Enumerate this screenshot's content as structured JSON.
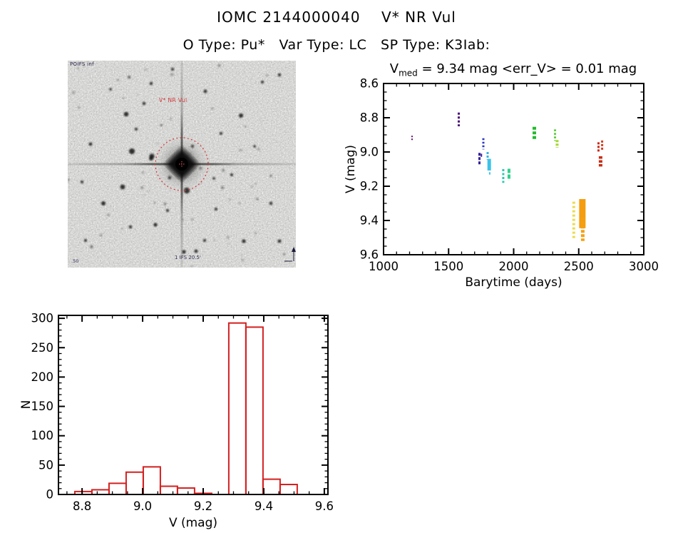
{
  "header": {
    "title": "IOMC 2144000040    V* NR Vul",
    "subtitle": "O Type: Pu*   Var Type: LC   SP Type: K3Iab:"
  },
  "finder_chart": {
    "survey_label": "POIFS inf",
    "target_label": "V* NR Vul",
    "scale_label": "1 IFS 20.5'",
    "corner_label": ".50",
    "circle_color": "#d83434"
  },
  "chart_data": [
    {
      "id": "lightcurve",
      "type": "scatter",
      "title": {
        "var": "V",
        "sub": "med",
        "rest": " = 9.34 mag <err_V> = 0.01 mag"
      },
      "xlabel": "Barytime (days)",
      "ylabel": "V (mag)",
      "xlim": [
        1000,
        3000
      ],
      "ylim_top": 8.6,
      "ylim_bottom": 9.6,
      "x_ticks": [
        "1000",
        "1500",
        "2000",
        "2500",
        "3000"
      ],
      "y_ticks": [
        "8.6",
        "8.8",
        "9.0",
        "9.2",
        "9.4",
        "9.6"
      ],
      "x_minor_step": 100,
      "y_minor_step": 0.05,
      "clusters": [
        {
          "day": 1219,
          "v1": 8.905,
          "v2": 8.935,
          "color": "#5a1066",
          "w": 2,
          "dash": "2 2"
        },
        {
          "day": 1578,
          "v1": 8.77,
          "v2": 8.85,
          "color": "#4c0e78",
          "w": 3,
          "dash": "3 2.5"
        },
        {
          "day": 1737,
          "v1": 9.005,
          "v2": 9.075,
          "color": "#342098",
          "w": 3,
          "dash": "4 2"
        },
        {
          "day": 1752,
          "v1": 9.01,
          "v2": 9.028,
          "color": "#342098",
          "w": 2,
          "dash": ""
        },
        {
          "day": 1767,
          "v1": 8.92,
          "v2": 8.985,
          "color": "#2a38c4",
          "w": 3,
          "dash": "2.5 2.5"
        },
        {
          "day": 1800,
          "v1": 9.0,
          "v2": 9.045,
          "color": "#38b0e0",
          "w": 3,
          "dash": "3 2"
        },
        {
          "day": 1812,
          "v1": 9.04,
          "v2": 9.108,
          "color": "#3cc2e8",
          "w": 5,
          "dash": ""
        },
        {
          "day": 1816,
          "v1": 9.118,
          "v2": 9.132,
          "color": "#3cc2e8",
          "w": 2,
          "dash": ""
        },
        {
          "day": 1920,
          "v1": 9.1,
          "v2": 9.18,
          "color": "#2cc8ac",
          "w": 3,
          "dash": "3 2.5"
        },
        {
          "day": 1964,
          "v1": 9.098,
          "v2": 9.165,
          "color": "#30d08c",
          "w": 4,
          "dash": "6 2"
        },
        {
          "day": 2159,
          "v1": 8.853,
          "v2": 8.928,
          "color": "#20bc2c",
          "w": 5,
          "dash": "4 2.5"
        },
        {
          "day": 2318,
          "v1": 8.868,
          "v2": 8.935,
          "color": "#55cc30",
          "w": 3,
          "dash": "2.5 2.5"
        },
        {
          "day": 2334,
          "v1": 8.93,
          "v2": 8.975,
          "color": "#a6d832",
          "w": 4,
          "dash": "3 2"
        },
        {
          "day": 2462,
          "v1": 9.29,
          "v2": 9.505,
          "color": "#ecdc4c",
          "w": 4,
          "dash": "3 3"
        },
        {
          "day": 2528,
          "v1": 9.275,
          "v2": 9.445,
          "color": "#f59d0e",
          "w": 9,
          "dash": ""
        },
        {
          "day": 2531,
          "v1": 9.38,
          "v2": 9.52,
          "color": "#f5a011",
          "w": 5,
          "dash": "4 2"
        },
        {
          "day": 2652,
          "v1": 8.943,
          "v2": 9.005,
          "color": "#cc2818",
          "w": 3,
          "dash": "3 2"
        },
        {
          "day": 2680,
          "v1": 8.933,
          "v2": 8.995,
          "color": "#d63c1e",
          "w": 3,
          "dash": "3 2"
        },
        {
          "day": 2668,
          "v1": 9.025,
          "v2": 9.085,
          "color": "#c92c14",
          "w": 5,
          "dash": "3.5 2"
        }
      ]
    },
    {
      "id": "histogram",
      "type": "histogram",
      "xlabel": "V (mag)",
      "ylabel": "N",
      "xlim": [
        8.722,
        9.612
      ],
      "ylim": [
        0,
        305
      ],
      "x_ticks": [
        "8.8",
        "9.0",
        "9.2",
        "9.4",
        "9.6"
      ],
      "y_ticks": [
        "0",
        "50",
        "100",
        "150",
        "200",
        "250",
        "300"
      ],
      "x_minor_step": 0.05,
      "y_minor_step": 10,
      "bin_start": 8.776,
      "bin_width": 0.0565,
      "counts": [
        5,
        8,
        19,
        38,
        47,
        14,
        11,
        2,
        0,
        292,
        285,
        26,
        17
      ],
      "bar_color": "#d42020"
    }
  ]
}
